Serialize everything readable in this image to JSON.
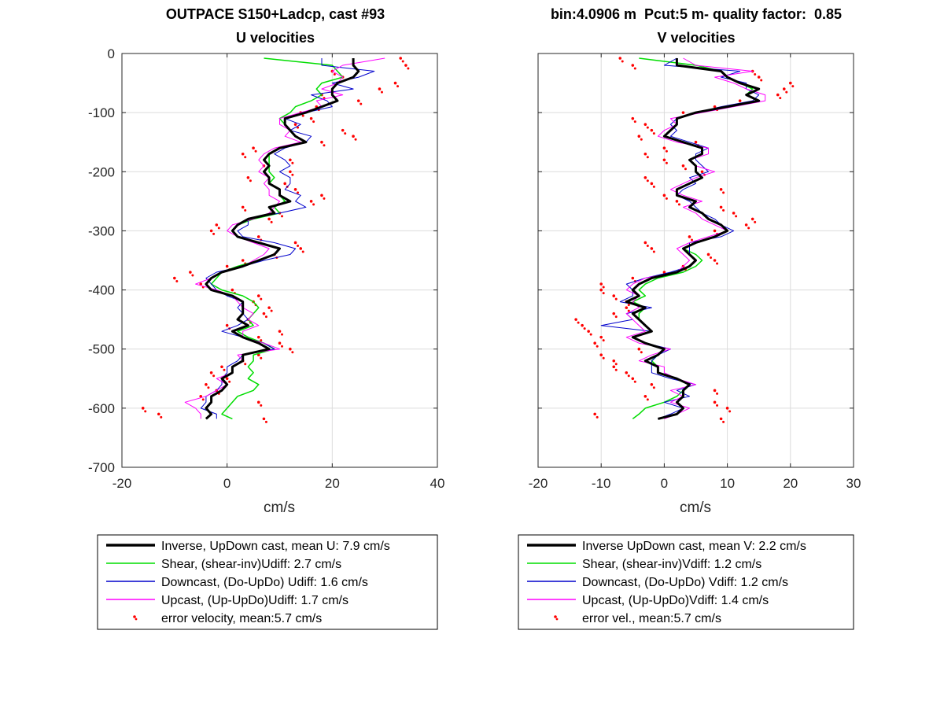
{
  "figure": {
    "left_title": [
      "OUTPACE S150+Ladcp, cast #93",
      "U velocities"
    ],
    "right_title": [
      "bin:4.0906 m  Pcut:5 m- quality factor:  0.85",
      "V velocities"
    ]
  },
  "colors": {
    "inverse": "#000000",
    "shear": "#00dd00",
    "downcast": "#0000cc",
    "upcast": "#ff00ff",
    "error": "#ff0000",
    "grid": "#dcdcdc"
  },
  "chart_data": [
    {
      "type": "line",
      "title": "U velocities",
      "xlabel": "cm/s",
      "ylabel": "",
      "xlim": [
        -20,
        40
      ],
      "ylim": [
        -700,
        0
      ],
      "xticks": [
        -20,
        0,
        20,
        40
      ],
      "yticks": [
        0,
        -100,
        -200,
        -300,
        -400,
        -500,
        -600,
        -700
      ],
      "grid": true,
      "legend_position": "below",
      "legend": [
        "Inverse, UpDown cast, mean U:  7.9 cm/s",
        "Shear, (shear-inv)Udiff:  2.7 cm/s",
        "Downcast, (Do-UpDo) Udiff:  1.6 cm/s",
        "Upcast, (Up-UpDo)Udiff:  1.7 cm/s",
        "error velocity, mean:5.7 cm/s"
      ],
      "depth": [
        -8,
        -20,
        -30,
        -40,
        -50,
        -60,
        -70,
        -80,
        -90,
        -100,
        -110,
        -120,
        -130,
        -140,
        -150,
        -160,
        -170,
        -180,
        -190,
        -200,
        -210,
        -220,
        -230,
        -240,
        -250,
        -260,
        -270,
        -280,
        -290,
        -300,
        -310,
        -320,
        -330,
        -340,
        -350,
        -360,
        -370,
        -380,
        -390,
        -400,
        -410,
        -420,
        -430,
        -440,
        -450,
        -460,
        -470,
        -480,
        -490,
        -500,
        -510,
        -520,
        -530,
        -540,
        -550,
        -560,
        -570,
        -580,
        -590,
        -600,
        -610,
        -618
      ],
      "series": [
        {
          "name": "Inverse, UpDown cast, mean U:  7.9 cm/s",
          "key": "inverse",
          "width": 3,
          "values": [
            24,
            24,
            25,
            24,
            21,
            20,
            20,
            21,
            18,
            15,
            11,
            11,
            12,
            13,
            15,
            10,
            8,
            7,
            8,
            7,
            8,
            8,
            10,
            10,
            12,
            8,
            9,
            4,
            2,
            1,
            2,
            6,
            10,
            9,
            6,
            3,
            -1,
            -3,
            -4,
            -3,
            1,
            3,
            3,
            3,
            2,
            4,
            1,
            3,
            6,
            8,
            3,
            3,
            1,
            1,
            -1,
            0,
            -1,
            -3,
            -3,
            -4,
            -3,
            -4
          ]
        },
        {
          "name": "Shear, (shear-inv)Udiff:  2.7 cm/s",
          "key": "shear",
          "width": 1.5,
          "values": [
            7,
            20,
            21,
            22,
            18,
            17,
            18,
            16,
            13,
            12,
            10,
            11,
            12,
            13,
            15,
            10,
            8,
            8,
            8,
            8,
            9,
            8,
            10,
            10,
            11,
            9,
            10,
            5,
            2,
            1,
            2,
            6,
            10,
            9,
            6,
            2,
            -1,
            -2,
            -3,
            -1,
            3,
            5,
            6,
            5,
            4,
            5,
            2,
            4,
            7,
            9,
            5,
            5,
            4,
            5,
            4,
            6,
            5,
            2,
            1,
            0,
            -1,
            1
          ]
        },
        {
          "name": "Downcast, (Do-UpDo) Udiff:  1.6 cm/s",
          "key": "downcast",
          "width": 1,
          "values": [
            18,
            18,
            28,
            25,
            20,
            24,
            16,
            19,
            20,
            15,
            11,
            14,
            12,
            16,
            15,
            11,
            9,
            11,
            12,
            10,
            12,
            12,
            11,
            14,
            13,
            15,
            10,
            4,
            4,
            2,
            3,
            9,
            13,
            12,
            7,
            3,
            -2,
            -4,
            -3,
            -2,
            0,
            3,
            2,
            3,
            4,
            2,
            -1,
            3,
            7,
            9,
            3,
            2,
            0,
            0,
            -1,
            -1,
            -2,
            -4,
            -4,
            -5,
            -2,
            -2
          ]
        },
        {
          "name": "Upcast, (Up-UpDo)Udiff:  1.7 cm/s",
          "key": "upcast",
          "width": 1,
          "values": [
            30,
            22,
            20,
            22,
            21,
            18,
            22,
            17,
            18,
            14,
            10,
            10,
            12,
            11,
            14,
            9,
            7,
            6,
            7,
            6,
            8,
            7,
            8,
            8,
            10,
            9,
            8,
            5,
            1,
            0,
            2,
            5,
            8,
            7,
            5,
            3,
            -1,
            -3,
            -6,
            -2,
            1,
            2,
            3,
            5,
            4,
            6,
            3,
            3,
            7,
            10,
            2,
            3,
            1,
            1,
            -2,
            0,
            -2,
            -4,
            -8,
            -6,
            -5,
            -5
          ]
        },
        {
          "name": "error velocity, mean:5.7 cm/s",
          "key": "error",
          "marker": "dot",
          "values": [
            33,
            34,
            20,
            22,
            32,
            29,
            18,
            25,
            17,
            14,
            16,
            13,
            22,
            24,
            18,
            5,
            3,
            12,
            7,
            12,
            4,
            11,
            13,
            18,
            16,
            3,
            10,
            8,
            -2,
            -3,
            6,
            13,
            14,
            9,
            3,
            0,
            -7,
            -10,
            -5,
            1,
            6,
            5,
            8,
            7,
            4,
            0,
            10,
            6,
            10,
            12,
            6,
            3,
            -1,
            -3,
            0,
            -4,
            -2,
            -5,
            6,
            -16,
            -13,
            7
          ]
        }
      ]
    },
    {
      "type": "line",
      "title": "V velocities",
      "xlabel": "cm/s",
      "ylabel": "",
      "xlim": [
        -20,
        30
      ],
      "ylim": [
        -700,
        0
      ],
      "xticks": [
        -20,
        -10,
        0,
        10,
        20,
        30
      ],
      "yticks": [
        0,
        -100,
        -200,
        -300,
        -400,
        -500,
        -600,
        -700
      ],
      "grid": true,
      "legend_position": "below",
      "legend": [
        "Inverse UpDown cast, mean V:  2.2 cm/s",
        "Shear, (shear-inv)Vdiff:  1.2 cm/s",
        "Downcast, (Do-UpDo) Vdiff:  1.2 cm/s",
        "Upcast, (Up-UpDo)Vdiff:  1.4 cm/s",
        "error vel., mean:5.7 cm/s"
      ],
      "depth": [
        -8,
        -20,
        -30,
        -40,
        -50,
        -60,
        -70,
        -80,
        -90,
        -100,
        -110,
        -120,
        -130,
        -140,
        -150,
        -160,
        -170,
        -180,
        -190,
        -200,
        -210,
        -220,
        -230,
        -240,
        -250,
        -260,
        -270,
        -280,
        -290,
        -300,
        -310,
        -320,
        -330,
        -340,
        -350,
        -360,
        -370,
        -380,
        -390,
        -400,
        -410,
        -420,
        -430,
        -440,
        -450,
        -460,
        -470,
        -480,
        -490,
        -500,
        -510,
        -520,
        -530,
        -540,
        -550,
        -560,
        -570,
        -580,
        -590,
        -600,
        -610,
        -618
      ],
      "series": [
        {
          "name": "Inverse UpDown cast, mean V:  2.2 cm/s",
          "key": "inverse",
          "width": 3,
          "values": [
            2,
            2,
            9,
            10,
            12,
            15,
            13,
            15,
            10,
            5,
            2,
            2,
            1,
            0,
            3,
            6,
            6,
            4,
            5,
            5,
            6,
            4,
            2,
            2,
            5,
            4,
            6,
            7,
            9,
            10,
            8,
            5,
            3,
            4,
            5,
            4,
            2,
            -2,
            -4,
            -5,
            -4,
            -6,
            -3,
            -5,
            -4,
            -3,
            -2,
            -5,
            -3,
            0,
            -1,
            -3,
            -1,
            -1,
            2,
            4,
            3,
            3,
            2,
            3,
            2,
            -1
          ]
        },
        {
          "name": "Shear, (shear-inv)Vdiff:  1.2 cm/s",
          "key": "shear",
          "width": 1.5,
          "values": [
            -4,
            5,
            9,
            10,
            12,
            14,
            13,
            15,
            10,
            5,
            2,
            2,
            1,
            0,
            3,
            6,
            6,
            4,
            5,
            5,
            6,
            4,
            2,
            2,
            5,
            4,
            6,
            7,
            9,
            10,
            8,
            5,
            3,
            5,
            6,
            5,
            3,
            -1,
            -3,
            -4,
            -3,
            -5,
            -3,
            -4,
            -4,
            -3,
            -2,
            -5,
            -3,
            0,
            -1,
            -2,
            -1,
            -1,
            2,
            4,
            3,
            2,
            0,
            -3,
            -4,
            -5
          ]
        },
        {
          "name": "Downcast, (Do-UpDo) Vdiff:  1.2 cm/s",
          "key": "downcast",
          "width": 1,
          "values": [
            2,
            0,
            12,
            9,
            13,
            13,
            15,
            14,
            9,
            5,
            2,
            1,
            2,
            1,
            4,
            7,
            5,
            5,
            6,
            7,
            4,
            5,
            3,
            2,
            4,
            5,
            6,
            8,
            9,
            11,
            9,
            4,
            4,
            4,
            5,
            4,
            1,
            -3,
            -6,
            -5,
            -5,
            -7,
            -2,
            -6,
            -5,
            -10,
            -2,
            -5,
            -3,
            1,
            -1,
            -2,
            -2,
            -2,
            1,
            5,
            2,
            4,
            0,
            3,
            1,
            -1
          ]
        },
        {
          "name": "Upcast, (Up-UpDo)Vdiff:  1.4 cm/s",
          "key": "upcast",
          "width": 1,
          "values": [
            3,
            5,
            14,
            8,
            11,
            13,
            16,
            16,
            11,
            6,
            1,
            2,
            0,
            -1,
            2,
            7,
            7,
            4,
            5,
            8,
            5,
            3,
            1,
            3,
            6,
            3,
            5,
            6,
            8,
            10,
            7,
            4,
            2,
            3,
            4,
            3,
            2,
            -3,
            -5,
            -6,
            -4,
            -5,
            -4,
            -6,
            -5,
            -4,
            -3,
            -6,
            -4,
            1,
            -2,
            -4,
            0,
            0,
            2,
            5,
            1,
            3,
            1,
            4,
            2,
            0
          ]
        },
        {
          "name": "error vel., mean:5.7 cm/s",
          "key": "error",
          "marker": "dot",
          "values": [
            -7,
            -5,
            14,
            15,
            20,
            19,
            18,
            12,
            8,
            3,
            -5,
            -3,
            -2,
            -4,
            5,
            0,
            -3,
            0,
            3,
            6,
            -3,
            -2,
            9,
            0,
            2,
            9,
            11,
            14,
            13,
            8,
            4,
            -3,
            -2,
            7,
            8,
            3,
            0,
            -5,
            -10,
            -10,
            -8,
            -6,
            -6,
            -8,
            -14,
            -13,
            -12,
            -10,
            -11,
            -4,
            -10,
            -8,
            -8,
            -6,
            -5,
            -2,
            8,
            -3,
            8,
            10,
            -11,
            9
          ]
        }
      ]
    }
  ]
}
